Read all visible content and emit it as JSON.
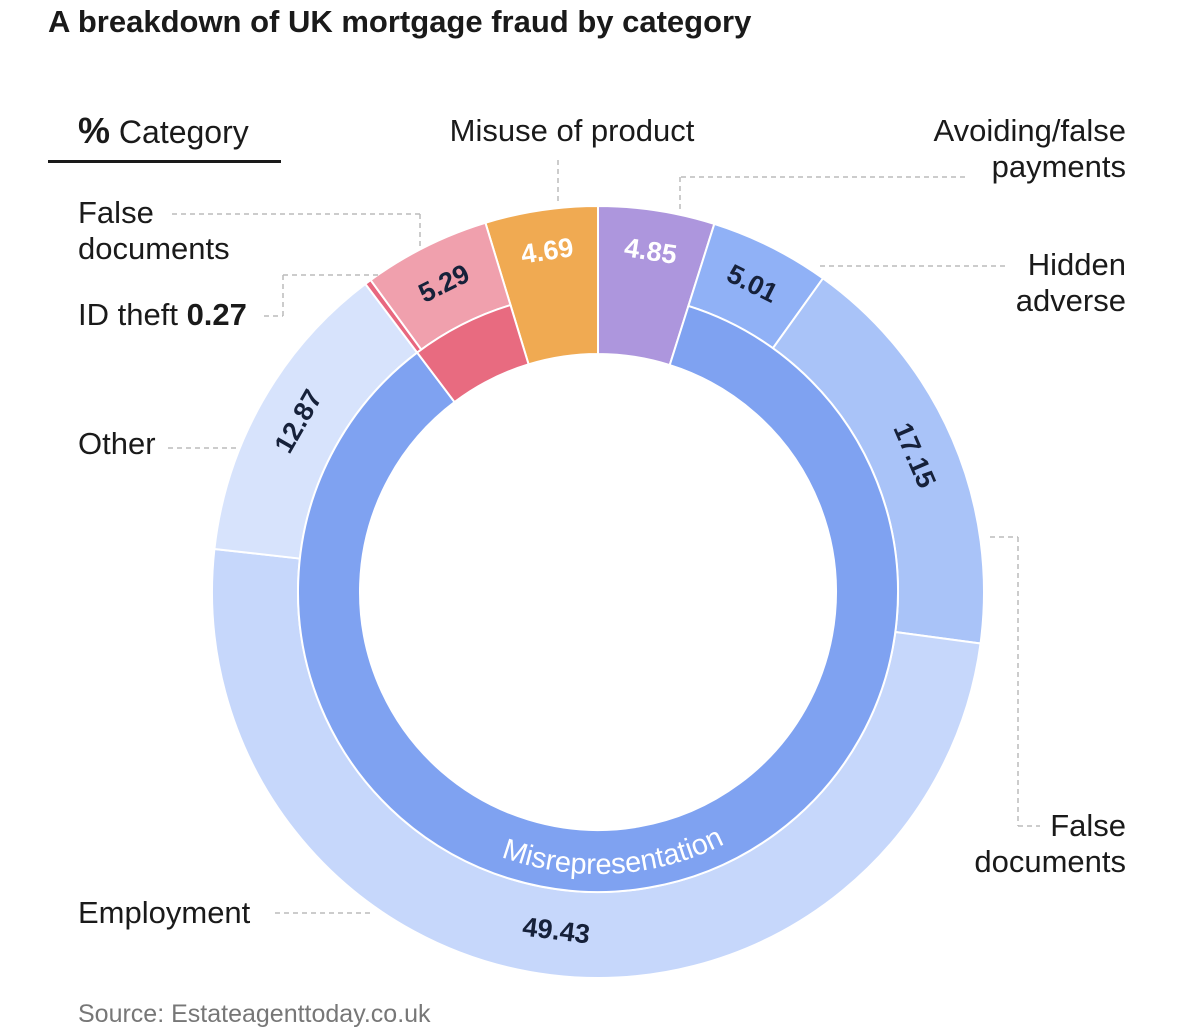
{
  "chart_data": {
    "type": "donut",
    "title": "A breakdown of UK mortgage fraud by category",
    "value_unit": "%",
    "name_header": "Category",
    "source": "Source: Estateagenttoday.co.uk",
    "groups": [
      {
        "segments": [
          {
            "name": "Misuse of product",
            "value": 4.69,
            "color": "#f0aa52",
            "label_color": "#ffffff"
          }
        ]
      },
      {
        "segments": [
          {
            "name": "Avoiding/false payments",
            "value": 4.85,
            "color": "#ad96dd",
            "label_color": "#ffffff"
          }
        ]
      },
      {
        "name": "Misrepresentation",
        "color": "#7fa2f1",
        "segments": [
          {
            "name": "Hidden adverse",
            "value": 5.01,
            "color": "#90b1f6",
            "label_color": "#16213a"
          },
          {
            "name": "False documents",
            "value": 17.15,
            "color": "#a9c3f8",
            "label_color": "#16213a"
          },
          {
            "name": "Employment",
            "value": 49.43,
            "color": "#c6d7fb",
            "label_color": "#16213a"
          },
          {
            "name": "Other",
            "value": 12.87,
            "color": "#d7e3fc",
            "label_color": "#16213a"
          }
        ]
      },
      {
        "color": "#e86b80",
        "segments": [
          {
            "name": "ID theft",
            "value": 0.27,
            "color": "#e8677f",
            "label_color": "#16213a"
          },
          {
            "name": "False documents",
            "value": 5.29,
            "color": "#f0a0ad",
            "label_color": "#16213a"
          }
        ]
      }
    ]
  }
}
